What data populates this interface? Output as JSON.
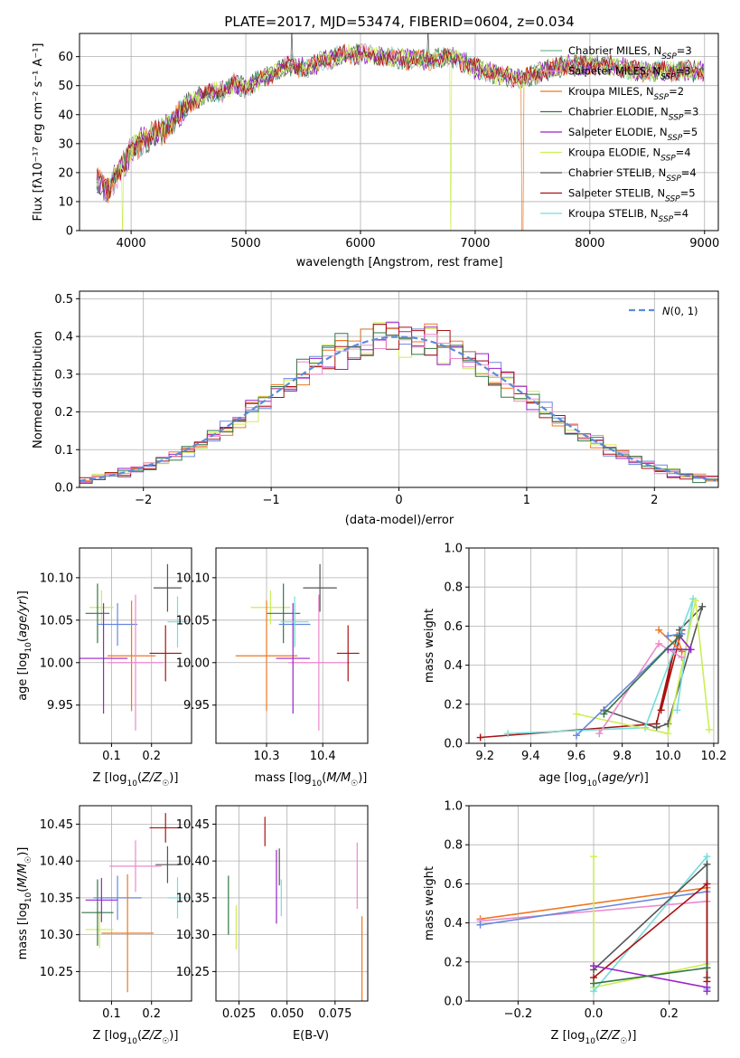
{
  "chart_data": [
    {
      "type": "line",
      "title": "PLATE=2017, MJD=53474, FIBERID=0604, z=0.034",
      "xlabel": "wavelength [Angstrom, rest frame]",
      "ylabel": "Flux [fλ10⁻¹⁷ erg cm⁻² s⁻¹ A⁻¹]",
      "xlim": [
        3550,
        9120
      ],
      "ylim": [
        0,
        68
      ],
      "xticks": [
        4000,
        5000,
        6000,
        7000,
        8000,
        9000
      ],
      "yticks": [
        0,
        10,
        20,
        30,
        40,
        50,
        60
      ],
      "legend_position": "top-right",
      "continuum": {
        "x": [
          3700,
          3800,
          3900,
          3950,
          4000,
          4100,
          4200,
          4300,
          4400,
          4500,
          4600,
          4700,
          4800,
          4900,
          5000,
          5100,
          5200,
          5300,
          5400,
          5500,
          5600,
          5700,
          5800,
          5900,
          6000,
          6200,
          6400,
          6600,
          6800,
          7000,
          7200,
          7400,
          7600,
          7800,
          8000,
          8200,
          8400,
          8600,
          8800,
          9000
        ],
        "y": [
          17,
          14,
          21,
          23,
          28,
          31,
          33,
          35,
          39,
          44,
          46,
          48,
          48,
          51,
          49,
          52,
          53,
          56,
          57,
          56,
          57,
          59,
          60,
          61,
          61,
          60,
          59,
          59,
          60,
          56,
          54,
          52,
          55,
          57,
          57,
          57,
          55,
          55,
          55,
          55
        ]
      },
      "series": [
        {
          "name": "Chabrier MILES, N_SSP=3",
          "color": "#77bb99"
        },
        {
          "name": "Salpeter MILES, N_SSP=3",
          "color": "#ee88cc"
        },
        {
          "name": "Kroupa MILES, N_SSP=2",
          "color": "#ee7722"
        },
        {
          "name": "Chabrier ELODIE, N_SSP=3",
          "color": "#337744"
        },
        {
          "name": "Salpeter ELODIE, N_SSP=5",
          "color": "#9922cc"
        },
        {
          "name": "Kroupa ELODIE, N_SSP=4",
          "color": "#ccee55"
        },
        {
          "name": "Chabrier STELIB, N_SSP=4",
          "color": "#555555"
        },
        {
          "name": "Salpeter STELIB, N_SSP=5",
          "color": "#aa1111"
        },
        {
          "name": "Kroupa STELIB, N_SSP=4",
          "color": "#77dddd"
        }
      ]
    },
    {
      "type": "histogram",
      "xlabel": "(data-model)/error",
      "ylabel": "Normed distribution",
      "xlim": [
        -2.5,
        2.5
      ],
      "ylim": [
        0,
        0.52
      ],
      "xticks": [
        -2,
        -1,
        0,
        1,
        2
      ],
      "yticks": [
        0.0,
        0.1,
        0.2,
        0.3,
        0.4,
        0.5
      ],
      "bin_width": 0.1,
      "legend": "N(0, 1)",
      "legend_position": "top-right",
      "series_colors": [
        "#6688dd",
        "#ee7722",
        "#ccee55",
        "#9922cc",
        "#aa1111",
        "#ee88cc",
        "#337744"
      ]
    },
    {
      "type": "scatter",
      "xlabel": "Z [log10(Z/Z☉)]",
      "ylabel": "age  [log10(age/yr)]",
      "xlim": [
        0.02,
        0.3
      ],
      "ylim": [
        9.905,
        10.135
      ],
      "xticks": [
        0.1,
        0.2
      ],
      "yticks": [
        9.95,
        10.0,
        10.05,
        10.1
      ],
      "points": [
        {
          "x": 0.075,
          "xerr": 0.03,
          "y": 10.065,
          "yerr": 0.02,
          "color": "#ccee55"
        },
        {
          "x": 0.065,
          "xerr": 0.03,
          "y": 10.058,
          "yerr": 0.035,
          "color": "#337744"
        },
        {
          "x": 0.115,
          "xerr": 0.05,
          "y": 10.045,
          "yerr": 0.025,
          "color": "#6688dd"
        },
        {
          "x": 0.15,
          "xerr": 0.06,
          "y": 10.008,
          "yerr": 0.065,
          "color": "#ee7722"
        },
        {
          "x": 0.16,
          "xerr": 0.07,
          "y": 10.0,
          "yerr": 0.08,
          "color": "#ee88cc"
        },
        {
          "x": 0.08,
          "xerr": 0.06,
          "y": 10.005,
          "yerr": 0.065,
          "color": "#9922cc"
        },
        {
          "x": 0.24,
          "xerr": 0.035,
          "y": 10.088,
          "yerr": 0.028,
          "color": "#555555"
        },
        {
          "x": 0.265,
          "xerr": 0.025,
          "y": 10.048,
          "yerr": 0.03,
          "color": "#77dddd"
        },
        {
          "x": 0.235,
          "xerr": 0.04,
          "y": 10.011,
          "yerr": 0.033,
          "color": "#aa1111"
        }
      ]
    },
    {
      "type": "scatter",
      "xlabel": "mass [log10(M/M☉)]",
      "xlim": [
        10.21,
        10.48
      ],
      "ylim": [
        9.905,
        10.135
      ],
      "xticks": [
        10.3,
        10.4
      ],
      "yticks": [
        9.95,
        10.0,
        10.05,
        10.1
      ],
      "points": [
        {
          "x": 10.307,
          "xerr": 0.035,
          "y": 10.065,
          "yerr": 0.02,
          "color": "#ccee55"
        },
        {
          "x": 10.33,
          "xerr": 0.03,
          "y": 10.058,
          "yerr": 0.035,
          "color": "#337744"
        },
        {
          "x": 10.35,
          "xerr": 0.028,
          "y": 10.045,
          "yerr": 0.025,
          "color": "#6688dd"
        },
        {
          "x": 10.3,
          "xerr": 0.055,
          "y": 10.008,
          "yerr": 0.065,
          "color": "#ee7722"
        },
        {
          "x": 10.393,
          "xerr": 0.055,
          "y": 10.0,
          "yerr": 0.08,
          "color": "#ee88cc"
        },
        {
          "x": 10.347,
          "xerr": 0.03,
          "y": 10.005,
          "yerr": 0.065,
          "color": "#9922cc"
        },
        {
          "x": 10.395,
          "xerr": 0.03,
          "y": 10.088,
          "yerr": 0.028,
          "color": "#555555"
        },
        {
          "x": 10.35,
          "xerr": 0.025,
          "y": 10.048,
          "yerr": 0.03,
          "color": "#77dddd"
        },
        {
          "x": 10.445,
          "xerr": 0.02,
          "y": 10.011,
          "yerr": 0.033,
          "color": "#aa1111"
        }
      ]
    },
    {
      "type": "line",
      "xlabel": "age  [log10(age/yr)]",
      "ylabel": "mass weight",
      "xlim": [
        9.13,
        10.22
      ],
      "ylim": [
        0,
        1
      ],
      "xticks": [
        9.2,
        9.4,
        9.6,
        9.8,
        10.0,
        10.2
      ],
      "yticks": [
        0.0,
        0.2,
        0.4,
        0.6,
        0.8,
        1.0
      ],
      "series": [
        {
          "color": "#aa1111",
          "x": [
            9.18,
            9.95,
            10.04,
            9.97,
            10.06
          ],
          "y": [
            0.03,
            0.1,
            0.55,
            0.17,
            0.58
          ]
        },
        {
          "color": "#555555",
          "x": [
            9.72,
            9.95,
            10.0,
            10.15,
            10.05
          ],
          "y": [
            0.17,
            0.08,
            0.1,
            0.7,
            0.58
          ]
        },
        {
          "color": "#77dddd",
          "x": [
            9.3,
            9.9,
            10.11,
            10.04
          ],
          "y": [
            0.05,
            0.08,
            0.74,
            0.17
          ]
        },
        {
          "color": "#ccee55",
          "x": [
            9.6,
            10.0,
            10.12,
            10.18
          ],
          "y": [
            0.15,
            0.05,
            0.73,
            0.07
          ]
        },
        {
          "color": "#ee7722",
          "x": [
            9.96,
            10.06,
            10.04
          ],
          "y": [
            0.58,
            0.47,
            0.55
          ]
        },
        {
          "color": "#ee88cc",
          "x": [
            9.7,
            9.96,
            10.06
          ],
          "y": [
            0.05,
            0.51,
            0.44
          ]
        },
        {
          "color": "#6688dd",
          "x": [
            9.6,
            10.06,
            10.0
          ],
          "y": [
            0.04,
            0.56,
            0.55
          ]
        },
        {
          "color": "#9922cc",
          "x": [
            10.0,
            10.1,
            10.05
          ],
          "y": [
            0.48,
            0.48,
            0.55
          ]
        },
        {
          "color": "#337744",
          "x": [
            9.72,
            10.05
          ],
          "y": [
            0.15,
            0.55
          ]
        }
      ]
    },
    {
      "type": "scatter",
      "xlabel": "Z [log10(Z/Z☉)]",
      "ylabel": "mass [log10(M/M☉)]",
      "xlim": [
        0.02,
        0.3
      ],
      "ylim": [
        10.21,
        10.475
      ],
      "xticks": [
        0.1,
        0.2
      ],
      "yticks": [
        10.25,
        10.3,
        10.35,
        10.4,
        10.45
      ],
      "points": [
        {
          "x": 0.07,
          "xerr": 0.035,
          "y": 10.307,
          "yerr": 0.025,
          "color": "#ccee55"
        },
        {
          "x": 0.065,
          "xerr": 0.04,
          "y": 10.33,
          "yerr": 0.045,
          "color": "#337744"
        },
        {
          "x": 0.115,
          "xerr": 0.06,
          "y": 10.35,
          "yerr": 0.03,
          "color": "#6688dd"
        },
        {
          "x": 0.14,
          "xerr": 0.065,
          "y": 10.302,
          "yerr": 0.08,
          "color": "#ee7722"
        },
        {
          "x": 0.16,
          "xerr": 0.065,
          "y": 10.393,
          "yerr": 0.035,
          "color": "#ee88cc"
        },
        {
          "x": 0.075,
          "xerr": 0.04,
          "y": 10.347,
          "yerr": 0.03,
          "color": "#9922cc"
        },
        {
          "x": 0.24,
          "xerr": 0.03,
          "y": 10.395,
          "yerr": 0.025,
          "color": "#555555"
        },
        {
          "x": 0.265,
          "xerr": 0.025,
          "y": 10.35,
          "yerr": 0.028,
          "color": "#77dddd"
        },
        {
          "x": 0.235,
          "xerr": 0.04,
          "y": 10.445,
          "yerr": 0.02,
          "color": "#aa1111"
        }
      ]
    },
    {
      "type": "scatter",
      "xlabel": "E(B-V)",
      "xlim": [
        0.013,
        0.092
      ],
      "ylim": [
        10.21,
        10.475
      ],
      "xticks": [
        0.025,
        0.05,
        0.075
      ],
      "yticks": [
        10.25,
        10.3,
        10.35,
        10.4,
        10.45
      ],
      "points": [
        {
          "x": 0.0195,
          "y": 10.34,
          "yerr": 0.04,
          "color": "#337744"
        },
        {
          "x": 0.0235,
          "y": 10.31,
          "yerr": 0.03,
          "color": "#ccee55"
        },
        {
          "x": 0.0385,
          "y": 10.44,
          "yerr": 0.02,
          "color": "#aa1111"
        },
        {
          "x": 0.0445,
          "y": 10.365,
          "yerr": 0.05,
          "color": "#9922cc"
        },
        {
          "x": 0.046,
          "y": 10.392,
          "yerr": 0.025,
          "color": "#555555"
        },
        {
          "x": 0.047,
          "y": 10.35,
          "yerr": 0.025,
          "color": "#77dddd"
        },
        {
          "x": 0.0865,
          "y": 10.38,
          "yerr": 0.045,
          "color": "#ee88cc"
        },
        {
          "x": 0.089,
          "y": 10.255,
          "yerr": 0.07,
          "color": "#ee7722"
        }
      ]
    },
    {
      "type": "line",
      "xlabel": "Z [log10(Z/Z☉)]",
      "ylabel": "mass weight",
      "xlim": [
        -0.33,
        0.33
      ],
      "ylim": [
        0,
        1
      ],
      "xticks": [
        -0.2,
        0.0,
        0.2
      ],
      "yticks": [
        0.0,
        0.2,
        0.4,
        0.6,
        0.8,
        1.0
      ],
      "series": [
        {
          "color": "#ee7722",
          "x": [
            -0.3,
            0.3
          ],
          "y": [
            0.42,
            0.58
          ]
        },
        {
          "color": "#ee88cc",
          "x": [
            -0.3,
            0.3
          ],
          "y": [
            0.41,
            0.51
          ]
        },
        {
          "color": "#6688dd",
          "x": [
            -0.3,
            0.3
          ],
          "y": [
            0.39,
            0.56
          ]
        },
        {
          "color": "#ccee55",
          "x": [
            0.0,
            0.0,
            0.3
          ],
          "y": [
            0.74,
            0.07,
            0.19
          ]
        },
        {
          "color": "#77dddd",
          "x": [
            0.0,
            0.3,
            0.3
          ],
          "y": [
            0.05,
            0.74,
            0.06
          ]
        },
        {
          "color": "#555555",
          "x": [
            0.0,
            0.3,
            0.3
          ],
          "y": [
            0.16,
            0.7,
            0.12
          ]
        },
        {
          "color": "#aa1111",
          "x": [
            0.0,
            0.3,
            0.3
          ],
          "y": [
            0.12,
            0.6,
            0.1
          ]
        },
        {
          "color": "#9922cc",
          "x": [
            0.0,
            0.3,
            0.3
          ],
          "y": [
            0.18,
            0.07,
            0.05
          ]
        },
        {
          "color": "#337744",
          "x": [
            0.0,
            0.3
          ],
          "y": [
            0.09,
            0.17
          ]
        }
      ]
    }
  ]
}
